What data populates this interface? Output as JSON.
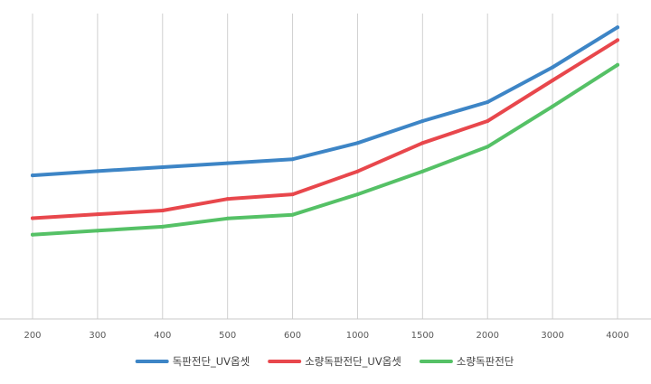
{
  "chart_data": {
    "type": "line",
    "title": "",
    "xlabel": "",
    "ylabel": "",
    "categories": [
      "200",
      "300",
      "400",
      "500",
      "600",
      "1000",
      "1500",
      "2000",
      "3000",
      "4000"
    ],
    "ylim": [
      0,
      100
    ],
    "y_axis_visible": false,
    "grid": "vertical",
    "legend_position": "bottom",
    "series": [
      {
        "name": "독판전단_UV옵셋",
        "color": "#3D85C6",
        "values": [
          47.0,
          48.4,
          49.7,
          51.0,
          52.3,
          57.6,
          64.8,
          71.0,
          82.4,
          95.5
        ]
      },
      {
        "name": "소량독판전단_UV옵셋",
        "color": "#E8474C",
        "values": [
          33.0,
          34.3,
          35.5,
          39.3,
          40.8,
          48.3,
          57.6,
          64.8,
          78.1,
          91.3
        ]
      },
      {
        "name": "소량독판전단",
        "color": "#55C166",
        "values": [
          27.6,
          28.9,
          30.2,
          32.9,
          34.1,
          40.8,
          48.3,
          56.4,
          69.6,
          83.2
        ]
      }
    ]
  }
}
